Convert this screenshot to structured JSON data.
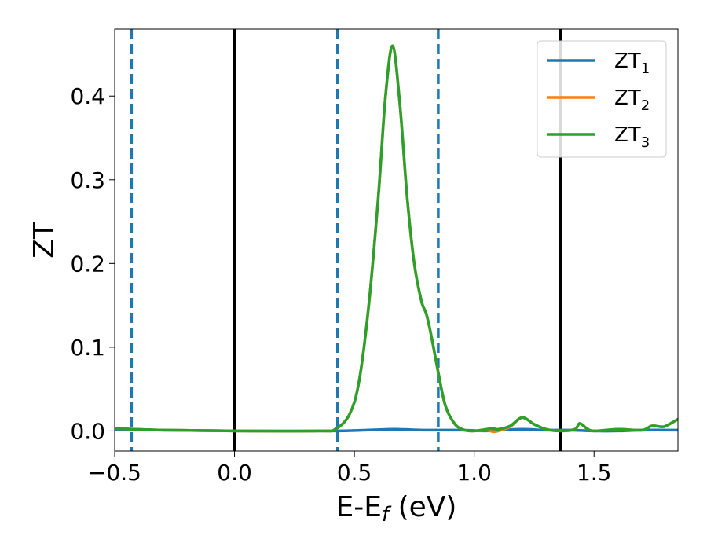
{
  "chart_data": {
    "type": "line",
    "title": "",
    "xlabel": "E-E",
    "xlabel_sub": "f",
    "xlabel_unit": " (eV)",
    "ylabel": "ZT",
    "xlim": [
      -0.5,
      1.85
    ],
    "ylim": [
      -0.024,
      0.48
    ],
    "xticks": [
      -0.5,
      0.0,
      0.5,
      1.0,
      1.5
    ],
    "xtick_labels": [
      "−0.5",
      "0.0",
      "0.5",
      "1.0",
      "1.5"
    ],
    "yticks": [
      0.0,
      0.1,
      0.2,
      0.3,
      0.4
    ],
    "ytick_labels": [
      "0.0",
      "0.1",
      "0.2",
      "0.3",
      "0.4"
    ],
    "grid": false,
    "legend_position": "top-right",
    "vlines": [
      {
        "x": -0.43,
        "style": "dashed",
        "color": "#1f77b4"
      },
      {
        "x": 0.0,
        "style": "solid",
        "color": "#000000"
      },
      {
        "x": 0.43,
        "style": "dashed",
        "color": "#1f77b4"
      },
      {
        "x": 0.85,
        "style": "dashed",
        "color": "#1f77b4"
      },
      {
        "x": 1.36,
        "style": "solid",
        "color": "#000000"
      }
    ],
    "series": [
      {
        "name": "ZT",
        "name_sub": "1",
        "color": "#1f77b4",
        "x": [
          -0.5,
          -0.3,
          0.0,
          0.4,
          0.55,
          0.67,
          0.8,
          0.95,
          1.05,
          1.1,
          1.2,
          1.3,
          1.4,
          1.5,
          1.6,
          1.7,
          1.85
        ],
        "y": [
          0.002,
          0.001,
          0.0,
          0.0,
          0.001,
          0.002,
          0.001,
          0.001,
          0.0,
          0.001,
          0.002,
          0.001,
          0.001,
          0.0,
          0.0,
          0.001,
          0.001
        ]
      },
      {
        "name": "ZT",
        "name_sub": "2",
        "color": "#ff7f0e",
        "x": [
          -0.5,
          -0.3,
          0.0,
          0.35,
          0.42,
          0.48,
          0.52,
          0.56,
          0.6,
          0.63,
          0.66,
          0.69,
          0.72,
          0.75,
          0.78,
          0.8,
          0.82,
          0.85,
          0.88,
          0.92,
          0.96,
          1.0,
          1.05,
          1.08,
          1.1,
          1.15,
          1.2,
          1.25,
          1.3,
          1.36,
          1.42,
          1.44,
          1.47,
          1.5,
          1.6,
          1.7,
          1.74,
          1.78,
          1.8,
          1.85
        ],
        "y": [
          0.003,
          0.001,
          0.0,
          0.0,
          0.002,
          0.02,
          0.06,
          0.15,
          0.28,
          0.4,
          0.46,
          0.39,
          0.28,
          0.2,
          0.155,
          0.14,
          0.115,
          0.07,
          0.03,
          0.008,
          0.001,
          0.0,
          0.001,
          -0.001,
          0.0,
          0.005,
          0.016,
          0.008,
          0.002,
          0.0,
          0.002,
          0.009,
          0.003,
          0.0,
          0.002,
          0.001,
          0.006,
          0.005,
          0.006,
          0.014
        ]
      },
      {
        "name": "ZT",
        "name_sub": "3",
        "color": "#2ca02c",
        "x": [
          -0.5,
          -0.3,
          0.0,
          0.35,
          0.42,
          0.48,
          0.52,
          0.56,
          0.6,
          0.63,
          0.66,
          0.69,
          0.72,
          0.75,
          0.78,
          0.8,
          0.82,
          0.85,
          0.88,
          0.92,
          0.96,
          1.0,
          1.05,
          1.08,
          1.1,
          1.15,
          1.2,
          1.25,
          1.3,
          1.36,
          1.42,
          1.44,
          1.47,
          1.5,
          1.6,
          1.7,
          1.74,
          1.78,
          1.8,
          1.85
        ],
        "y": [
          0.003,
          0.001,
          0.0,
          0.0,
          0.002,
          0.02,
          0.06,
          0.15,
          0.28,
          0.4,
          0.46,
          0.39,
          0.28,
          0.2,
          0.155,
          0.14,
          0.115,
          0.07,
          0.03,
          0.008,
          0.001,
          0.0,
          0.002,
          0.003,
          0.002,
          0.006,
          0.016,
          0.008,
          0.002,
          0.0,
          0.002,
          0.009,
          0.003,
          0.0,
          0.002,
          0.001,
          0.006,
          0.005,
          0.006,
          0.014
        ]
      }
    ]
  }
}
